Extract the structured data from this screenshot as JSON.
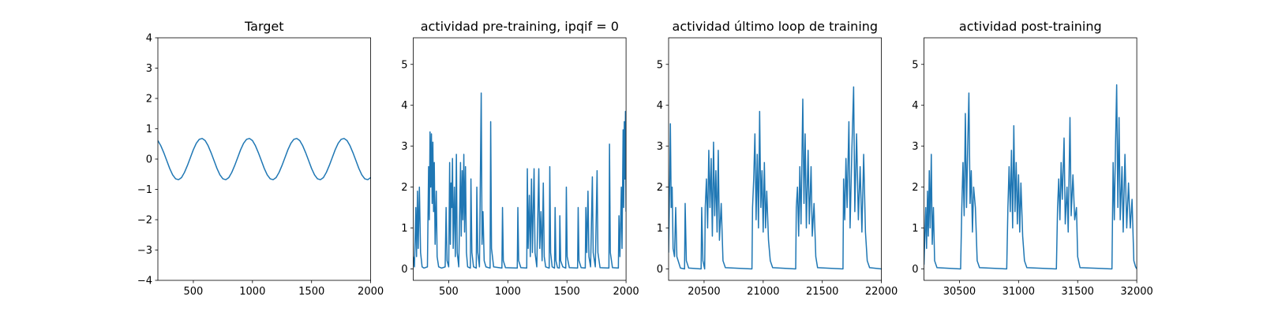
{
  "chart_data": [
    {
      "type": "line",
      "title": "Target",
      "color": "#1f77b4",
      "xlim": [
        200,
        2000
      ],
      "xticks": [
        500,
        1000,
        1500,
        2000
      ],
      "ylim": [
        -4,
        4
      ],
      "yticks": [
        {
          "value": -4,
          "label": "−4"
        },
        {
          "value": -3,
          "label": "−3"
        },
        {
          "value": -2,
          "label": "−2"
        },
        {
          "value": -1,
          "label": "−1"
        },
        0,
        1,
        2,
        3,
        4
      ],
      "x": [
        200,
        225,
        250,
        275,
        300,
        325,
        350,
        375,
        400,
        425,
        450,
        475,
        500,
        525,
        550,
        575,
        600,
        625,
        650,
        675,
        700,
        725,
        750,
        775,
        800,
        825,
        850,
        875,
        900,
        925,
        950,
        975,
        1000,
        1025,
        1050,
        1075,
        1100,
        1125,
        1150,
        1175,
        1200,
        1225,
        1250,
        1275,
        1300,
        1325,
        1350,
        1375,
        1400,
        1425,
        1450,
        1475,
        1500,
        1525,
        1550,
        1575,
        1600,
        1625,
        1650,
        1675,
        1700,
        1725,
        1750,
        1775,
        1800,
        1825,
        1850,
        1875,
        1900,
        1925,
        1950,
        1975,
        2000
      ],
      "values": [
        0.61,
        0.44,
        0.21,
        -0.05,
        -0.31,
        -0.52,
        -0.65,
        -0.68,
        -0.61,
        -0.44,
        -0.21,
        0.05,
        0.31,
        0.52,
        0.65,
        0.68,
        0.61,
        0.44,
        0.21,
        -0.05,
        -0.31,
        -0.52,
        -0.65,
        -0.68,
        -0.61,
        -0.44,
        -0.21,
        0.05,
        0.31,
        0.52,
        0.65,
        0.68,
        0.61,
        0.44,
        0.21,
        -0.05,
        -0.31,
        -0.52,
        -0.65,
        -0.68,
        -0.61,
        -0.44,
        -0.21,
        0.05,
        0.31,
        0.52,
        0.65,
        0.68,
        0.61,
        0.44,
        0.21,
        -0.05,
        -0.31,
        -0.52,
        -0.65,
        -0.68,
        -0.61,
        -0.44,
        -0.21,
        0.05,
        0.31,
        0.52,
        0.65,
        0.68,
        0.61,
        0.44,
        0.21,
        -0.05,
        -0.31,
        -0.52,
        -0.65,
        -0.68,
        -0.61
      ]
    },
    {
      "type": "line",
      "title": "actividad pre-training, ipqif = 0",
      "color": "#1f77b4",
      "xlim": [
        200,
        2000
      ],
      "xticks": [
        500,
        1000,
        1500,
        2000
      ],
      "ylim": [
        -0.28,
        5.65
      ],
      "yticks": [
        0,
        1,
        2,
        3,
        4,
        5
      ],
      "x": [
        200,
        210,
        222,
        228,
        236,
        242,
        252,
        262,
        275,
        290,
        320,
        330,
        336,
        342,
        348,
        354,
        360,
        366,
        372,
        378,
        385,
        395,
        402,
        415,
        440,
        470,
        478,
        486,
        500,
        508,
        514,
        520,
        526,
        532,
        538,
        548,
        556,
        565,
        572,
        585,
        600,
        606,
        614,
        620,
        628,
        634,
        642,
        650,
        660,
        683,
        688,
        696,
        710,
        733,
        738,
        746,
        760,
        775,
        782,
        790,
        800,
        815,
        850,
        855,
        862,
        880,
        950,
        955,
        962,
        980,
        1080,
        1085,
        1092,
        1110,
        1160,
        1165,
        1172,
        1182,
        1190,
        1200,
        1208,
        1222,
        1230,
        1245,
        1262,
        1270,
        1280,
        1290,
        1300,
        1308,
        1320,
        1350,
        1355,
        1362,
        1375,
        1395,
        1400,
        1407,
        1420,
        1436,
        1440,
        1447,
        1465,
        1490,
        1495,
        1502,
        1520,
        1590,
        1595,
        1602,
        1620,
        1655,
        1660,
        1668,
        1678,
        1686,
        1700,
        1715,
        1722,
        1740,
        1755,
        1762,
        1780,
        1855,
        1860,
        1867,
        1885,
        1935,
        1940,
        1948,
        1960,
        1966,
        1975,
        1980,
        1985,
        1990,
        1995,
        2000
      ],
      "values": [
        0.3,
        0.05,
        1.5,
        0.3,
        1.9,
        0.5,
        2.0,
        0.4,
        0.05,
        0.02,
        0.05,
        2.5,
        1.2,
        3.35,
        2.0,
        3.3,
        1.6,
        3.1,
        1.4,
        2.6,
        0.6,
        1.9,
        0.3,
        0.05,
        0.02,
        0.05,
        1.5,
        0.2,
        0.05,
        2.6,
        0.6,
        2.1,
        1.5,
        2.7,
        0.5,
        2.0,
        0.3,
        2.8,
        0.4,
        0.05,
        2.6,
        0.8,
        2.4,
        1.2,
        2.8,
        0.9,
        2.5,
        0.4,
        0.05,
        0.02,
        2.2,
        0.4,
        0.05,
        0.02,
        2.0,
        0.4,
        0.05,
        4.3,
        0.6,
        1.4,
        0.2,
        0.05,
        0.02,
        3.6,
        0.5,
        0.05,
        0.02,
        1.5,
        0.2,
        0.03,
        0.02,
        1.5,
        0.2,
        0.03,
        0.02,
        2.45,
        0.5,
        1.8,
        0.3,
        2.2,
        0.4,
        2.45,
        0.4,
        0.05,
        2.45,
        0.5,
        1.4,
        0.2,
        2.1,
        0.3,
        0.05,
        0.02,
        2.5,
        0.4,
        0.05,
        0.02,
        1.5,
        0.2,
        0.03,
        0.02,
        1.3,
        0.2,
        0.05,
        0.02,
        2.0,
        0.3,
        0.03,
        0.02,
        1.5,
        0.2,
        0.03,
        0.02,
        1.5,
        0.4,
        1.9,
        0.3,
        0.05,
        2.25,
        0.4,
        0.05,
        2.4,
        0.4,
        0.03,
        0.02,
        3.05,
        0.4,
        0.03,
        0.02,
        1.3,
        0.3,
        2.0,
        0.5,
        3.4,
        1.5,
        3.6,
        2.2,
        3.85,
        1.4
      ]
    },
    {
      "type": "line",
      "title": "actividad último loop de training",
      "color": "#1f77b4",
      "xlim": [
        20200,
        22000
      ],
      "xticks": [
        20500,
        21000,
        21500,
        22000
      ],
      "ylim": [
        -0.28,
        5.65
      ],
      "yticks": [
        0,
        1,
        2,
        3,
        4,
        5
      ],
      "x": [
        20200,
        20210,
        20215,
        20222,
        20230,
        20238,
        20250,
        20260,
        20270,
        20300,
        20335,
        20340,
        20350,
        20370,
        20475,
        20480,
        20490,
        20505,
        20510,
        20520,
        20530,
        20540,
        20550,
        20560,
        20570,
        20580,
        20590,
        20600,
        20610,
        20620,
        20630,
        20645,
        20660,
        20680,
        20905,
        20910,
        20920,
        20930,
        20940,
        20950,
        20960,
        20970,
        20980,
        20990,
        21000,
        21010,
        21020,
        21030,
        21045,
        21060,
        21080,
        21275,
        21280,
        21290,
        21300,
        21310,
        21320,
        21335,
        21345,
        21355,
        21365,
        21380,
        21390,
        21405,
        21415,
        21430,
        21445,
        21460,
        21675,
        21680,
        21690,
        21700,
        21710,
        21725,
        21735,
        21750,
        21765,
        21775,
        21790,
        21805,
        21820,
        21835,
        21850,
        21865,
        21880,
        21900,
        22000
      ],
      "values": [
        0.4,
        2.3,
        3.55,
        1.5,
        2.0,
        0.5,
        0.3,
        1.5,
        0.3,
        0.02,
        0.0,
        1.6,
        0.2,
        0.02,
        0.0,
        1.5,
        0.2,
        0.0,
        1.5,
        2.2,
        1.0,
        2.9,
        1.5,
        2.7,
        0.8,
        3.1,
        1.3,
        2.4,
        0.9,
        2.9,
        0.7,
        1.6,
        0.2,
        0.03,
        0.0,
        1.5,
        2.2,
        3.3,
        1.2,
        2.8,
        1.0,
        3.85,
        1.5,
        2.4,
        0.9,
        2.6,
        1.0,
        1.9,
        0.7,
        0.2,
        0.03,
        0.0,
        1.5,
        2.0,
        0.8,
        2.5,
        1.1,
        4.15,
        1.6,
        3.3,
        1.0,
        2.9,
        1.1,
        2.5,
        0.8,
        1.6,
        0.3,
        0.03,
        0.0,
        2.2,
        1.2,
        2.7,
        1.5,
        3.6,
        1.0,
        2.9,
        4.45,
        1.4,
        3.3,
        1.2,
        2.5,
        0.9,
        2.8,
        0.9,
        0.2,
        0.03,
        0.0
      ]
    },
    {
      "type": "line",
      "title": "actividad post-training",
      "color": "#1f77b4",
      "xlim": [
        30200,
        32000
      ],
      "xticks": [
        30500,
        31000,
        31500,
        32000
      ],
      "ylim": [
        -0.28,
        5.65
      ],
      "yticks": [
        0,
        1,
        2,
        3,
        4,
        5
      ],
      "x": [
        30200,
        30215,
        30222,
        30230,
        30237,
        30245,
        30252,
        30262,
        30270,
        30280,
        30290,
        30310,
        30510,
        30520,
        30530,
        30540,
        30550,
        30560,
        30570,
        30580,
        30590,
        30600,
        30610,
        30620,
        30635,
        30650,
        30670,
        30900,
        30910,
        30920,
        30930,
        30940,
        30950,
        30960,
        30970,
        30980,
        30990,
        31000,
        31010,
        31020,
        31035,
        31050,
        31070,
        31320,
        31330,
        31340,
        31350,
        31360,
        31370,
        31385,
        31395,
        31410,
        31420,
        31435,
        31445,
        31460,
        31475,
        31490,
        31500,
        31520,
        31790,
        31800,
        31810,
        31820,
        31830,
        31840,
        31850,
        31860,
        31875,
        31885,
        31900,
        31915,
        31930,
        31945,
        31960,
        31975,
        31990,
        32000
      ],
      "values": [
        0.1,
        1.5,
        0.5,
        1.9,
        0.8,
        2.4,
        1.0,
        2.8,
        0.6,
        1.5,
        0.2,
        0.03,
        0.0,
        1.5,
        2.6,
        1.3,
        3.8,
        1.5,
        3.0,
        4.3,
        1.6,
        2.4,
        0.9,
        2.0,
        1.5,
        0.2,
        0.03,
        0.0,
        1.5,
        2.5,
        1.4,
        2.9,
        1.0,
        3.5,
        1.4,
        2.6,
        1.1,
        2.3,
        0.9,
        2.1,
        0.8,
        0.2,
        0.03,
        0.0,
        1.5,
        2.2,
        1.2,
        2.6,
        1.7,
        3.2,
        1.1,
        2.0,
        0.9,
        3.7,
        1.3,
        2.3,
        1.2,
        1.5,
        0.3,
        0.03,
        0.0,
        2.6,
        1.2,
        3.0,
        4.5,
        1.5,
        3.7,
        1.2,
        2.5,
        0.9,
        2.8,
        1.0,
        2.1,
        1.0,
        1.7,
        0.2,
        0.05,
        0.0
      ]
    }
  ]
}
